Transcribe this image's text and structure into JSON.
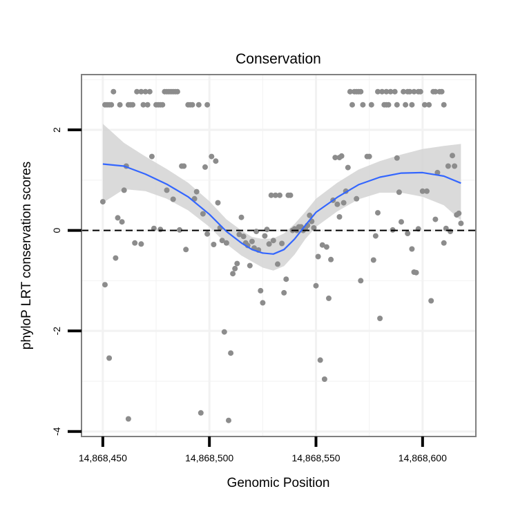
{
  "chart_data": {
    "type": "scatter",
    "title": "Conservation",
    "xlabel": "Genomic Position",
    "ylabel": "phyloP LRT conservation scores",
    "xlim": [
      14868440,
      14868625
    ],
    "ylim": [
      -4.1,
      3.1
    ],
    "x_ticks": [
      14868450,
      14868500,
      14868550,
      14868600
    ],
    "x_tick_labels": [
      "14,868,450",
      "14,868,500",
      "14,868,550",
      "14,868,600"
    ],
    "y_ticks": [
      -4,
      -2,
      0,
      2
    ],
    "y_tick_labels": [
      "-4",
      "-2",
      "0",
      "2"
    ],
    "reference_line": {
      "y": 0,
      "style": "dashed"
    },
    "grid": true,
    "colors": {
      "points": "#8c8c8c",
      "smooth_line": "#3366ff",
      "ribbon": "#d4d4d4",
      "reference_line": "#000000",
      "panel_border": "#7f7f7f",
      "grid": "#f2f2f2"
    },
    "points": [
      [
        14868450,
        0.57
      ],
      [
        14868451,
        -1.08
      ],
      [
        14868451,
        2.5
      ],
      [
        14868452,
        2.5
      ],
      [
        14868453,
        -2.54
      ],
      [
        14868453,
        2.5
      ],
      [
        14868454,
        2.5
      ],
      [
        14868455,
        2.76
      ],
      [
        14868456,
        -0.55
      ],
      [
        14868457,
        0.25
      ],
      [
        14868458,
        2.5
      ],
      [
        14868459,
        0.17
      ],
      [
        14868460,
        0.8
      ],
      [
        14868461,
        1.28
      ],
      [
        14868462,
        -3.75
      ],
      [
        14868462,
        2.5
      ],
      [
        14868463,
        2.5
      ],
      [
        14868464,
        2.5
      ],
      [
        14868465,
        -0.25
      ],
      [
        14868466,
        2.76
      ],
      [
        14868468,
        -0.27
      ],
      [
        14868468,
        2.76
      ],
      [
        14868469,
        2.5
      ],
      [
        14868470,
        2.76
      ],
      [
        14868471,
        2.5
      ],
      [
        14868472,
        2.76
      ],
      [
        14868473,
        1.47
      ],
      [
        14868474,
        0.04
      ],
      [
        14868475,
        2.5
      ],
      [
        14868476,
        2.5
      ],
      [
        14868477,
        0.02
      ],
      [
        14868477,
        2.5
      ],
      [
        14868478,
        2.5
      ],
      [
        14868479,
        2.76
      ],
      [
        14868480,
        2.76
      ],
      [
        14868480,
        0.8
      ],
      [
        14868481,
        2.76
      ],
      [
        14868482,
        2.76
      ],
      [
        14868483,
        2.76
      ],
      [
        14868483,
        0.62
      ],
      [
        14868484,
        2.76
      ],
      [
        14868485,
        2.76
      ],
      [
        14868486,
        0.01
      ],
      [
        14868487,
        1.28
      ],
      [
        14868488,
        1.28
      ],
      [
        14868489,
        -0.38
      ],
      [
        14868490,
        2.5
      ],
      [
        14868491,
        2.5
      ],
      [
        14868492,
        2.5
      ],
      [
        14868493,
        0.63
      ],
      [
        14868494,
        0.77
      ],
      [
        14868495,
        2.5
      ],
      [
        14868496,
        -3.63
      ],
      [
        14868497,
        0.33
      ],
      [
        14868498,
        1.26
      ],
      [
        14868499,
        2.5
      ],
      [
        14868499,
        -0.07
      ],
      [
        14868501,
        1.47
      ],
      [
        14868502,
        -0.28
      ],
      [
        14868503,
        1.38
      ],
      [
        14868504,
        0.55
      ],
      [
        14868505,
        0.05
      ],
      [
        14868506,
        -0.2
      ],
      [
        14868507,
        -2.02
      ],
      [
        14868508,
        -0.25
      ],
      [
        14868509,
        -3.78
      ],
      [
        14868510,
        -2.44
      ],
      [
        14868511,
        -0.86
      ],
      [
        14868512,
        -0.76
      ],
      [
        14868513,
        -0.66
      ],
      [
        14868514,
        -0.08
      ],
      [
        14868515,
        0.26
      ],
      [
        14868516,
        -0.12
      ],
      [
        14868517,
        -0.25
      ],
      [
        14868518,
        -0.3
      ],
      [
        14868519,
        -0.7
      ],
      [
        14868520,
        -0.22
      ],
      [
        14868521,
        -0.35
      ],
      [
        14868522,
        -0.02
      ],
      [
        14868523,
        -0.39
      ],
      [
        14868524,
        -1.2
      ],
      [
        14868525,
        -1.44
      ],
      [
        14868526,
        -0.11
      ],
      [
        14868527,
        0.02
      ],
      [
        14868528,
        -0.27
      ],
      [
        14868529,
        0.7
      ],
      [
        14868530,
        -0.2
      ],
      [
        14868531,
        0.7
      ],
      [
        14868532,
        -0.67
      ],
      [
        14868533,
        0.7
      ],
      [
        14868534,
        -0.26
      ],
      [
        14868535,
        -1.24
      ],
      [
        14868536,
        -0.97
      ],
      [
        14868537,
        0.7
      ],
      [
        14868538,
        0.7
      ],
      [
        14868539,
        0.0
      ],
      [
        14868540,
        0.03
      ],
      [
        14868541,
        0.0
      ],
      [
        14868542,
        0.07
      ],
      [
        14868543,
        0.07
      ],
      [
        14868544,
        0.0
      ],
      [
        14868545,
        0.04
      ],
      [
        14868546,
        0.1
      ],
      [
        14868547,
        0.3
      ],
      [
        14868548,
        0.18
      ],
      [
        14868549,
        0.05
      ],
      [
        14868550,
        -1.1
      ],
      [
        14868551,
        -0.52
      ],
      [
        14868552,
        -2.58
      ],
      [
        14868553,
        -0.29
      ],
      [
        14868554,
        -2.96
      ],
      [
        14868555,
        -0.33
      ],
      [
        14868556,
        -1.35
      ],
      [
        14868557,
        -0.58
      ],
      [
        14868558,
        0.6
      ],
      [
        14868559,
        1.45
      ],
      [
        14868560,
        0.52
      ],
      [
        14868561,
        0.27
      ],
      [
        14868561,
        1.45
      ],
      [
        14868562,
        1.48
      ],
      [
        14868563,
        0.55
      ],
      [
        14868564,
        0.78
      ],
      [
        14868565,
        1.25
      ],
      [
        14868566,
        2.76
      ],
      [
        14868567,
        2.5
      ],
      [
        14868568,
        2.76
      ],
      [
        14868569,
        0.63
      ],
      [
        14868569,
        2.76
      ],
      [
        14868570,
        2.76
      ],
      [
        14868571,
        -1.0
      ],
      [
        14868571,
        2.76
      ],
      [
        14868572,
        2.5
      ],
      [
        14868574,
        1.47
      ],
      [
        14868575,
        1.47
      ],
      [
        14868576,
        2.5
      ],
      [
        14868577,
        -0.59
      ],
      [
        14868578,
        -0.11
      ],
      [
        14868579,
        0.35
      ],
      [
        14868579,
        2.76
      ],
      [
        14868580,
        -1.75
      ],
      [
        14868581,
        2.76
      ],
      [
        14868582,
        2.5
      ],
      [
        14868583,
        2.76
      ],
      [
        14868583,
        2.5
      ],
      [
        14868584,
        2.5
      ],
      [
        14868585,
        2.76
      ],
      [
        14868586,
        0.01
      ],
      [
        14868587,
        2.76
      ],
      [
        14868588,
        2.5
      ],
      [
        14868588,
        1.44
      ],
      [
        14868589,
        0.76
      ],
      [
        14868590,
        0.17
      ],
      [
        14868591,
        2.76
      ],
      [
        14868592,
        2.5
      ],
      [
        14868593,
        -0.06
      ],
      [
        14868593,
        2.76
      ],
      [
        14868594,
        2.76
      ],
      [
        14868595,
        -0.37
      ],
      [
        14868595,
        2.5
      ],
      [
        14868596,
        2.76
      ],
      [
        14868596,
        -0.83
      ],
      [
        14868597,
        -0.84
      ],
      [
        14868598,
        0.03
      ],
      [
        14868598,
        2.76
      ],
      [
        14868599,
        2.76
      ],
      [
        14868600,
        0.78
      ],
      [
        14868601,
        2.5
      ],
      [
        14868602,
        0.78
      ],
      [
        14868603,
        2.5
      ],
      [
        14868604,
        -1.4
      ],
      [
        14868605,
        2.76
      ],
      [
        14868606,
        0.22
      ],
      [
        14868606,
        2.76
      ],
      [
        14868607,
        1.15
      ],
      [
        14868608,
        2.76
      ],
      [
        14868609,
        2.76
      ],
      [
        14868610,
        -0.25
      ],
      [
        14868610,
        2.5
      ],
      [
        14868611,
        0.04
      ],
      [
        14868612,
        1.28
      ],
      [
        14868613,
        -0.02
      ],
      [
        14868614,
        1.49
      ],
      [
        14868615,
        1.28
      ],
      [
        14868616,
        0.31
      ],
      [
        14868617,
        0.34
      ],
      [
        14868618,
        0.14
      ]
    ],
    "smooth": {
      "x": [
        14868450,
        14868460,
        14868470,
        14868480,
        14868490,
        14868500,
        14868508,
        14868515,
        14868520,
        14868525,
        14868530,
        14868535,
        14868540,
        14868545,
        14868550,
        14868560,
        14868570,
        14868580,
        14868590,
        14868600,
        14868610,
        14868618
      ],
      "y": [
        1.32,
        1.28,
        1.12,
        0.92,
        0.67,
        0.32,
        -0.02,
        -0.25,
        -0.38,
        -0.45,
        -0.47,
        -0.38,
        -0.17,
        0.1,
        0.36,
        0.66,
        0.91,
        1.06,
        1.14,
        1.15,
        1.08,
        0.94
      ],
      "lower": [
        0.55,
        0.82,
        0.78,
        0.63,
        0.4,
        0.07,
        -0.27,
        -0.5,
        -0.62,
        -0.74,
        -0.8,
        -0.71,
        -0.48,
        -0.17,
        0.07,
        0.38,
        0.62,
        0.75,
        0.75,
        0.67,
        0.5,
        0.2
      ],
      "upper": [
        2.12,
        1.74,
        1.47,
        1.22,
        0.95,
        0.58,
        0.22,
        0.0,
        -0.13,
        -0.17,
        -0.16,
        -0.06,
        0.13,
        0.37,
        0.63,
        0.95,
        1.21,
        1.38,
        1.51,
        1.62,
        1.68,
        1.72
      ]
    }
  }
}
